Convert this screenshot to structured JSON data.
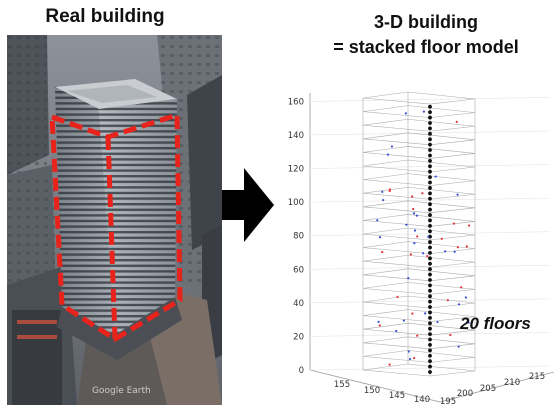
{
  "labels": {
    "left_title": "Real building",
    "right_title_line1": "3-D building",
    "right_title_line2": "= stacked floor model",
    "floors": "20 floors"
  },
  "chart_data": {
    "type": "scatter3d",
    "floor_count": 20,
    "z_ticks": [
      "0",
      "20",
      "40",
      "60",
      "80",
      "100",
      "120",
      "140",
      "160"
    ],
    "x_ticks": [
      "155",
      "150",
      "145",
      "140"
    ],
    "y_ticks": [
      "195",
      "200",
      "205",
      "210",
      "215"
    ],
    "zlim": [
      0,
      165
    ],
    "grid": true
  },
  "colors": {
    "highlight": "#e8231b",
    "points_red": "#e2323a",
    "points_blue": "#3a4fd6"
  }
}
